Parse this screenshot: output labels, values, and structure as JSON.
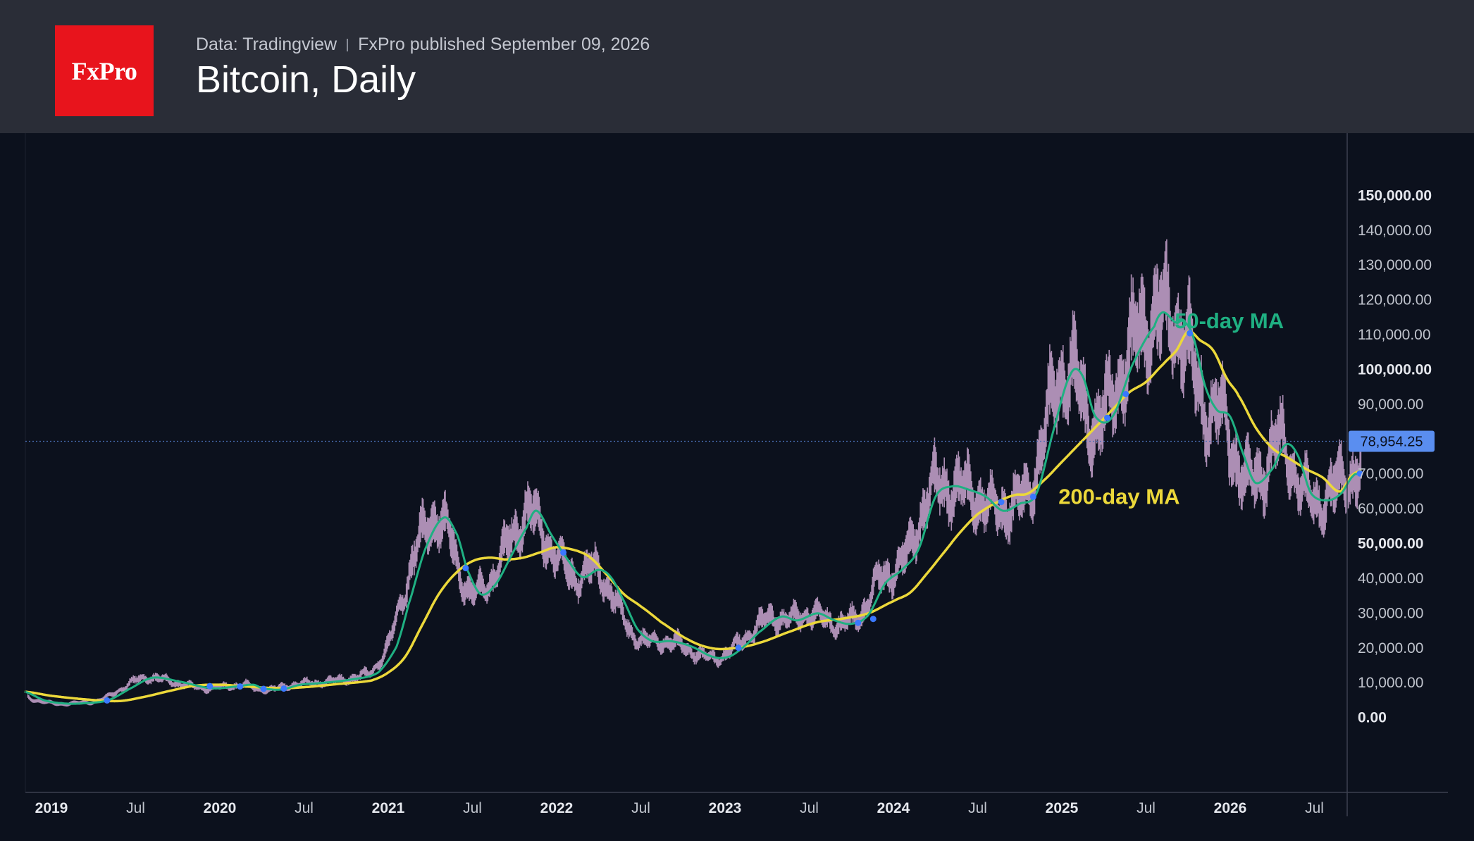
{
  "header": {
    "logo_text": "FxPro",
    "source": "Data: Tradingview",
    "published": "FxPro published September 09, 2026",
    "title": "Bitcoin, Daily"
  },
  "colors": {
    "background": "#0c111d",
    "header_bg": "#2a2d37",
    "logo_bg": "#e8141c",
    "ma50": "#1fb082",
    "ma200": "#ecd83a",
    "candles": "#c9a4cf",
    "price_badge": "#5a8ef0",
    "cross_marker": "#3a78ff"
  },
  "chart_data": {
    "type": "line",
    "title": "Bitcoin, Daily",
    "y_axis": {
      "min": -10000,
      "max": 160000,
      "ticks": [
        0,
        10000,
        20000,
        30000,
        40000,
        50000,
        60000,
        70000,
        80000,
        90000,
        100000,
        110000,
        120000,
        130000,
        140000,
        150000
      ],
      "tick_labels": [
        "0.00",
        "10,000.00",
        "20,000.00",
        "30,000.00",
        "40,000.00",
        "50,000.00",
        "60,000.00",
        "70,000.00",
        "80,000.00",
        "90,000.00",
        "100,000.00",
        "110,000.00",
        "120,000.00",
        "130,000.00",
        "140,000.00",
        "150,000.00"
      ],
      "bold_ticks": [
        0,
        50000,
        100000,
        150000
      ]
    },
    "x_axis": {
      "start": 2019.0,
      "end": 2026.78,
      "ticks": [
        {
          "t": 2019.0,
          "label": "2019",
          "bold": true
        },
        {
          "t": 2019.5,
          "label": "Jul",
          "bold": false
        },
        {
          "t": 2020.0,
          "label": "2020",
          "bold": true
        },
        {
          "t": 2020.5,
          "label": "Jul",
          "bold": false
        },
        {
          "t": 2021.0,
          "label": "2021",
          "bold": true
        },
        {
          "t": 2021.5,
          "label": "Jul",
          "bold": false
        },
        {
          "t": 2022.0,
          "label": "2022",
          "bold": true
        },
        {
          "t": 2022.5,
          "label": "Jul",
          "bold": false
        },
        {
          "t": 2023.0,
          "label": "2023",
          "bold": true
        },
        {
          "t": 2023.5,
          "label": "Jul",
          "bold": false
        },
        {
          "t": 2024.0,
          "label": "2024",
          "bold": true
        },
        {
          "t": 2024.5,
          "label": "Jul",
          "bold": false
        },
        {
          "t": 2025.0,
          "label": "2025",
          "bold": true
        },
        {
          "t": 2025.5,
          "label": "Jul",
          "bold": false
        },
        {
          "t": 2026.0,
          "label": "2026",
          "bold": true
        },
        {
          "t": 2026.5,
          "label": "Jul",
          "bold": false
        }
      ]
    },
    "last_price": {
      "value": 78954.25,
      "label": "78,954.25"
    },
    "series": [
      {
        "name": "50-day MA",
        "label_anchor": [
          2025.67,
          113500
        ],
        "points": [
          [
            2018.84,
            7000
          ],
          [
            2018.96,
            4500
          ],
          [
            2019.08,
            3600
          ],
          [
            2019.2,
            3700
          ],
          [
            2019.34,
            4600
          ],
          [
            2019.48,
            8200
          ],
          [
            2019.6,
            11000
          ],
          [
            2019.75,
            10000
          ],
          [
            2019.95,
            8000
          ],
          [
            2020.1,
            8500
          ],
          [
            2020.2,
            9000
          ],
          [
            2020.25,
            8000
          ],
          [
            2020.36,
            7600
          ],
          [
            2020.48,
            9000
          ],
          [
            2020.6,
            9500
          ],
          [
            2020.78,
            10500
          ],
          [
            2020.94,
            12500
          ],
          [
            2021.05,
            20000
          ],
          [
            2021.12,
            32000
          ],
          [
            2021.22,
            48000
          ],
          [
            2021.33,
            57000
          ],
          [
            2021.41,
            52000
          ],
          [
            2021.47,
            42000
          ],
          [
            2021.55,
            35000
          ],
          [
            2021.64,
            38000
          ],
          [
            2021.73,
            46000
          ],
          [
            2021.82,
            54000
          ],
          [
            2021.88,
            59000
          ],
          [
            2021.97,
            52000
          ],
          [
            2022.05,
            46000
          ],
          [
            2022.15,
            40000
          ],
          [
            2022.25,
            42000
          ],
          [
            2022.32,
            40000
          ],
          [
            2022.4,
            33000
          ],
          [
            2022.48,
            25000
          ],
          [
            2022.57,
            21500
          ],
          [
            2022.68,
            21500
          ],
          [
            2022.8,
            20000
          ],
          [
            2022.93,
            17000
          ],
          [
            2023.02,
            17000
          ],
          [
            2023.1,
            19500
          ],
          [
            2023.2,
            24000
          ],
          [
            2023.33,
            28500
          ],
          [
            2023.43,
            27500
          ],
          [
            2023.55,
            29500
          ],
          [
            2023.65,
            27500
          ],
          [
            2023.75,
            26500
          ],
          [
            2023.85,
            29000
          ],
          [
            2023.95,
            38000
          ],
          [
            2024.05,
            42000
          ],
          [
            2024.15,
            48000
          ],
          [
            2024.25,
            63000
          ],
          [
            2024.35,
            66000
          ],
          [
            2024.45,
            65000
          ],
          [
            2024.55,
            63000
          ],
          [
            2024.65,
            59000
          ],
          [
            2024.75,
            61000
          ],
          [
            2024.85,
            64000
          ],
          [
            2024.95,
            82000
          ],
          [
            2025.05,
            98000
          ],
          [
            2025.12,
            98000
          ],
          [
            2025.2,
            86000
          ],
          [
            2025.3,
            86000
          ],
          [
            2025.42,
            101000
          ],
          [
            2025.55,
            112000
          ],
          [
            2025.6,
            116000
          ],
          [
            2025.68,
            113000
          ],
          [
            2025.72,
            113500
          ],
          [
            2025.78,
            109000
          ],
          [
            2025.85,
            95000
          ],
          [
            2025.92,
            88000
          ],
          [
            2026.0,
            86000
          ],
          [
            2026.08,
            75000
          ],
          [
            2026.15,
            67000
          ],
          [
            2026.25,
            71000
          ],
          [
            2026.33,
            78000
          ],
          [
            2026.4,
            75000
          ],
          [
            2026.48,
            64000
          ],
          [
            2026.58,
            62000
          ],
          [
            2026.66,
            64000
          ],
          [
            2026.73,
            69000
          ],
          [
            2026.77,
            69500
          ]
        ]
      },
      {
        "name": "200-day MA",
        "label_anchor": [
          2024.98,
          63000
        ],
        "points": [
          [
            2018.84,
            7000
          ],
          [
            2019.0,
            5800
          ],
          [
            2019.2,
            4800
          ],
          [
            2019.4,
            4300
          ],
          [
            2019.55,
            5500
          ],
          [
            2019.7,
            7200
          ],
          [
            2019.85,
            8700
          ],
          [
            2020.0,
            9000
          ],
          [
            2020.15,
            8500
          ],
          [
            2020.35,
            8000
          ],
          [
            2020.5,
            8300
          ],
          [
            2020.7,
            9200
          ],
          [
            2020.9,
            10200
          ],
          [
            2021.0,
            12500
          ],
          [
            2021.1,
            17000
          ],
          [
            2021.2,
            26000
          ],
          [
            2021.3,
            35000
          ],
          [
            2021.4,
            41000
          ],
          [
            2021.5,
            44500
          ],
          [
            2021.6,
            45500
          ],
          [
            2021.7,
            45000
          ],
          [
            2021.8,
            45500
          ],
          [
            2021.9,
            47000
          ],
          [
            2022.0,
            48500
          ],
          [
            2022.12,
            47500
          ],
          [
            2022.2,
            45500
          ],
          [
            2022.3,
            40500
          ],
          [
            2022.4,
            35000
          ],
          [
            2022.5,
            31500
          ],
          [
            2022.62,
            27000
          ],
          [
            2022.78,
            22000
          ],
          [
            2022.92,
            19500
          ],
          [
            2023.05,
            19500
          ],
          [
            2023.2,
            21000
          ],
          [
            2023.4,
            24500
          ],
          [
            2023.55,
            27000
          ],
          [
            2023.7,
            28000
          ],
          [
            2023.85,
            29500
          ],
          [
            2024.0,
            33000
          ],
          [
            2024.1,
            35500
          ],
          [
            2024.2,
            41000
          ],
          [
            2024.3,
            47000
          ],
          [
            2024.4,
            53000
          ],
          [
            2024.5,
            58000
          ],
          [
            2024.62,
            61500
          ],
          [
            2024.72,
            63500
          ],
          [
            2024.8,
            64000
          ],
          [
            2024.9,
            68000
          ],
          [
            2025.0,
            73000
          ],
          [
            2025.1,
            78000
          ],
          [
            2025.2,
            83000
          ],
          [
            2025.3,
            88000
          ],
          [
            2025.4,
            93000
          ],
          [
            2025.5,
            96000
          ],
          [
            2025.6,
            101000
          ],
          [
            2025.68,
            105000
          ],
          [
            2025.75,
            110500
          ],
          [
            2025.82,
            108000
          ],
          [
            2025.9,
            105000
          ],
          [
            2025.98,
            97000
          ],
          [
            2026.05,
            92000
          ],
          [
            2026.15,
            83000
          ],
          [
            2026.25,
            77000
          ],
          [
            2026.35,
            74000
          ],
          [
            2026.45,
            71000
          ],
          [
            2026.55,
            68500
          ],
          [
            2026.65,
            64500
          ],
          [
            2026.72,
            69000
          ],
          [
            2026.78,
            70500
          ]
        ]
      }
    ],
    "cross_markers": [
      [
        2019.33,
        4500
      ],
      [
        2019.94,
        8600
      ],
      [
        2020.12,
        8500
      ],
      [
        2020.26,
        7800
      ],
      [
        2020.38,
        7900
      ],
      [
        2021.46,
        42500
      ],
      [
        2022.04,
        47000
      ],
      [
        2023.08,
        19600
      ],
      [
        2023.79,
        26800
      ],
      [
        2023.88,
        27900
      ],
      [
        2024.64,
        61500
      ],
      [
        2024.83,
        63000
      ],
      [
        2025.27,
        85700
      ],
      [
        2025.38,
        92500
      ],
      [
        2025.76,
        110000
      ],
      [
        2026.77,
        69700
      ]
    ]
  }
}
